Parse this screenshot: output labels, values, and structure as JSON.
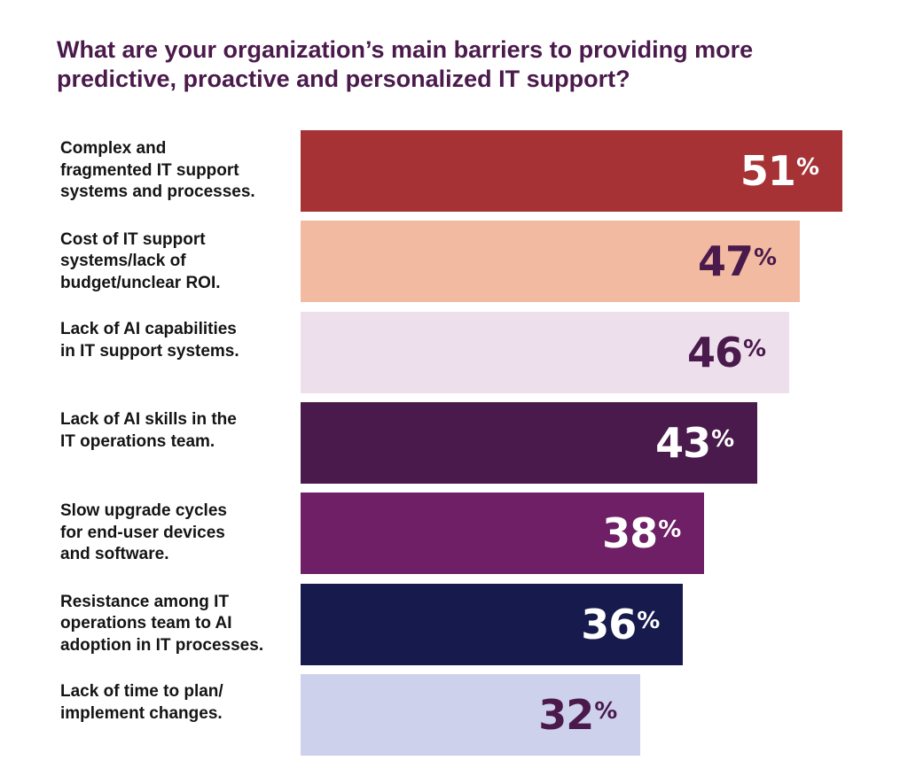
{
  "title": "What are your organization’s main barriers to providing more predictive, proactive and personalized IT support?",
  "chart_data": {
    "type": "bar",
    "orientation": "horizontal",
    "title": "What are your organization’s main barriers to providing more predictive, proactive and personalized IT support?",
    "xlabel": "",
    "ylabel": "",
    "xlim": [
      0,
      51
    ],
    "unit": "%",
    "grid": false,
    "legend": "none",
    "categories": [
      "Complex and\nfragmented IT support\nsystems and processes.",
      "Cost of IT support\nsystems/lack of\nbudget/unclear ROI.",
      "Lack of AI capabilities\nin IT support systems.",
      "Lack of AI skills in the\nIT operations team.",
      "Slow upgrade cycles\nfor end-user devices\nand software.",
      "Resistance among IT\noperations team to AI\nadoption in IT processes.",
      "Lack of time to plan/\nimplement changes."
    ],
    "values": [
      51,
      47,
      46,
      43,
      38,
      36,
      32
    ],
    "bar_colors": [
      "#a63235",
      "#f2baa1",
      "#ede0ec",
      "#4a1a4c",
      "#6e1f66",
      "#161a4c",
      "#cdd1ec"
    ],
    "value_label_colors": [
      "#ffffff",
      "#4a1a4c",
      "#4a1a4c",
      "#ffffff",
      "#ffffff",
      "#ffffff",
      "#4a1a4c"
    ]
  }
}
